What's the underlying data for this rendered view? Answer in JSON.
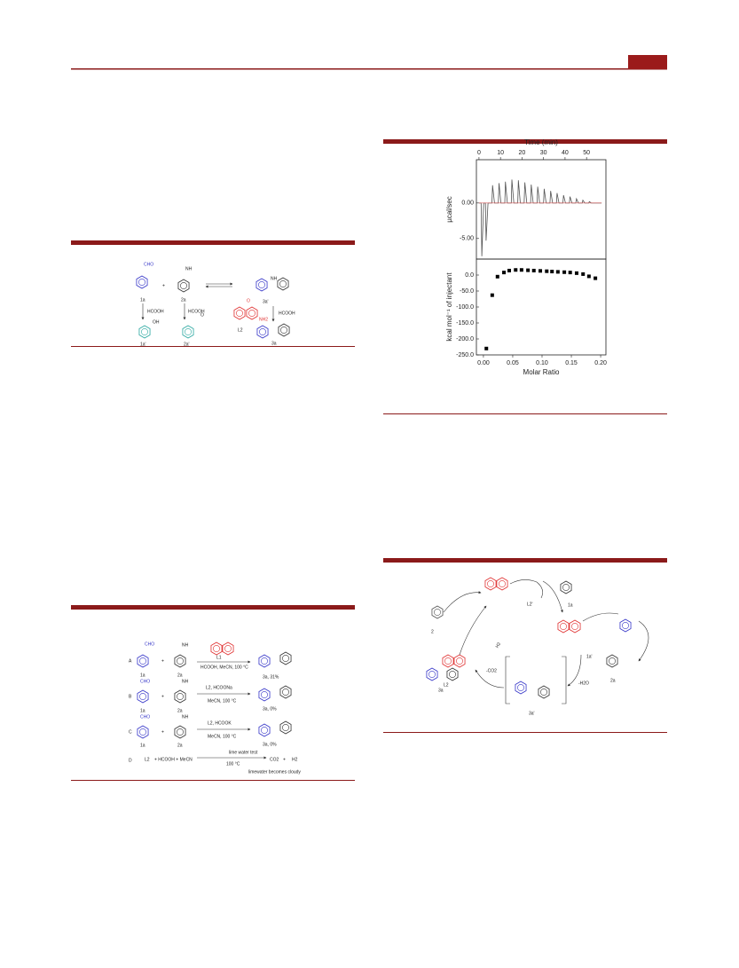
{
  "scheme1": {
    "labels": [
      "CHO",
      "+",
      "NH",
      "1a",
      "2a",
      "HCOOH",
      "HCOOH",
      "1a'",
      "2a'",
      "OH",
      "3a'",
      "L2",
      "HCOOH",
      "3a",
      "NH2",
      "O",
      "NH",
      "O"
    ]
  },
  "scheme2": {
    "labels": [
      "A",
      "CHO",
      "+",
      "NH",
      "1a",
      "2a",
      "L1",
      "HCOOH, MeCN, 100 °C",
      "3a, 31%",
      "B",
      "CHO",
      "+",
      "NH",
      "1a",
      "2a",
      "L2, HCOONa",
      "MeCN, 100 °C",
      "3a, 0%",
      "C",
      "CHO",
      "+",
      "NH",
      "1a",
      "2a",
      "L2, HCOOK",
      "MeCN, 100 °C",
      "3a, 0%",
      "D",
      "L2",
      "+ HCOOH + MeCN",
      "lime water test",
      "100 °C",
      "CO2",
      "+",
      "H2",
      "limewater becomes cloudy"
    ]
  },
  "scheme3": {
    "labels": [
      "2",
      "L2'",
      "1a",
      "1a'",
      "2a",
      "L2",
      "-CO2",
      "3a",
      "3a'",
      "H2",
      "-H2O"
    ]
  },
  "chart_data": [
    {
      "type": "line",
      "xlabel": "Time (min)",
      "ylabel": "µcal/sec",
      "x": [
        0,
        1,
        1.3,
        2.2,
        3,
        3.3,
        4.2,
        6,
        6.3,
        7.2,
        9,
        9.3,
        10.2,
        12,
        12.3,
        13.2,
        15,
        15.3,
        16.2,
        18,
        18.3,
        19.2,
        21,
        21.3,
        22.2,
        24,
        24.3,
        25.2,
        27,
        27.3,
        28.2,
        30,
        30.3,
        31.2,
        33,
        33.3,
        34.2,
        36,
        36.3,
        37.2,
        39,
        39.3,
        40.2,
        42,
        42.3,
        43.2,
        45,
        45.3,
        46.2,
        48,
        48.3,
        49.2,
        51,
        51.3,
        52.2,
        57
      ],
      "series": [
        {
          "color": "#555555",
          "values": [
            0,
            0,
            -7.5,
            0,
            0,
            -5.3,
            0,
            0,
            2.5,
            0,
            0,
            2.8,
            0,
            0,
            3.0,
            0,
            0,
            3.3,
            0,
            0,
            3.2,
            0,
            0,
            2.9,
            0,
            0,
            2.6,
            0,
            0,
            2.3,
            0,
            0,
            2.0,
            0,
            0,
            1.7,
            0,
            0,
            1.4,
            0,
            0,
            1.1,
            0,
            0,
            0.9,
            0,
            0,
            0.6,
            0,
            0,
            0.4,
            0,
            0,
            0.2,
            0,
            0
          ]
        },
        {
          "color": "#e06060",
          "values": [
            0,
            0,
            0,
            0,
            0,
            0,
            0,
            0,
            0,
            0,
            0,
            0,
            0,
            0,
            0,
            0,
            0,
            0,
            0,
            0,
            0,
            0,
            0,
            0,
            0,
            0,
            0,
            0,
            0,
            0,
            0,
            0,
            0,
            0,
            0,
            0,
            0,
            0,
            0,
            0,
            0,
            0,
            0,
            0,
            0,
            0,
            0,
            0,
            0,
            0,
            0,
            0,
            0,
            0,
            0,
            0
          ]
        }
      ],
      "xlim": [
        -1.2,
        59
      ],
      "xticks": [
        0,
        10,
        20,
        30,
        40,
        50
      ],
      "ylim": [
        -7.9,
        6.1
      ],
      "yticks": [
        {
          "value": 0,
          "label": "0.00"
        },
        {
          "value": -5,
          "label": "-5.00"
        }
      ]
    },
    {
      "type": "scatter",
      "xlabel": "Molar Ratio",
      "ylabel": "kcal mol⁻¹ of injectant",
      "color": "#000000",
      "x": [
        0.005,
        0.015,
        0.024,
        0.035,
        0.044,
        0.055,
        0.065,
        0.076,
        0.086,
        0.097,
        0.108,
        0.117,
        0.127,
        0.138,
        0.148,
        0.159,
        0.17,
        0.18,
        0.191
      ],
      "values": [
        -230,
        -63,
        -5,
        8,
        14,
        16,
        16,
        15,
        14,
        13,
        12,
        11,
        10,
        9,
        8,
        6,
        3,
        -4,
        -10
      ],
      "xlim": [
        -0.012,
        0.209
      ],
      "xticks": [
        {
          "value": 0,
          "label": "0.00"
        },
        {
          "value": 0.05,
          "label": "0.05"
        },
        {
          "value": 0.1,
          "label": "0.10"
        },
        {
          "value": 0.15,
          "label": "0.15"
        },
        {
          "value": 0.2,
          "label": "0.20"
        }
      ],
      "ylim": [
        -250,
        50
      ],
      "yticks": [
        {
          "value": 0,
          "label": "0.0"
        },
        {
          "value": -50,
          "label": "-50.0"
        },
        {
          "value": -100,
          "label": "-100.0"
        },
        {
          "value": -150,
          "label": "-150.0"
        },
        {
          "value": -200,
          "label": "-200.0"
        },
        {
          "value": -250,
          "label": "-250.0"
        }
      ]
    }
  ]
}
